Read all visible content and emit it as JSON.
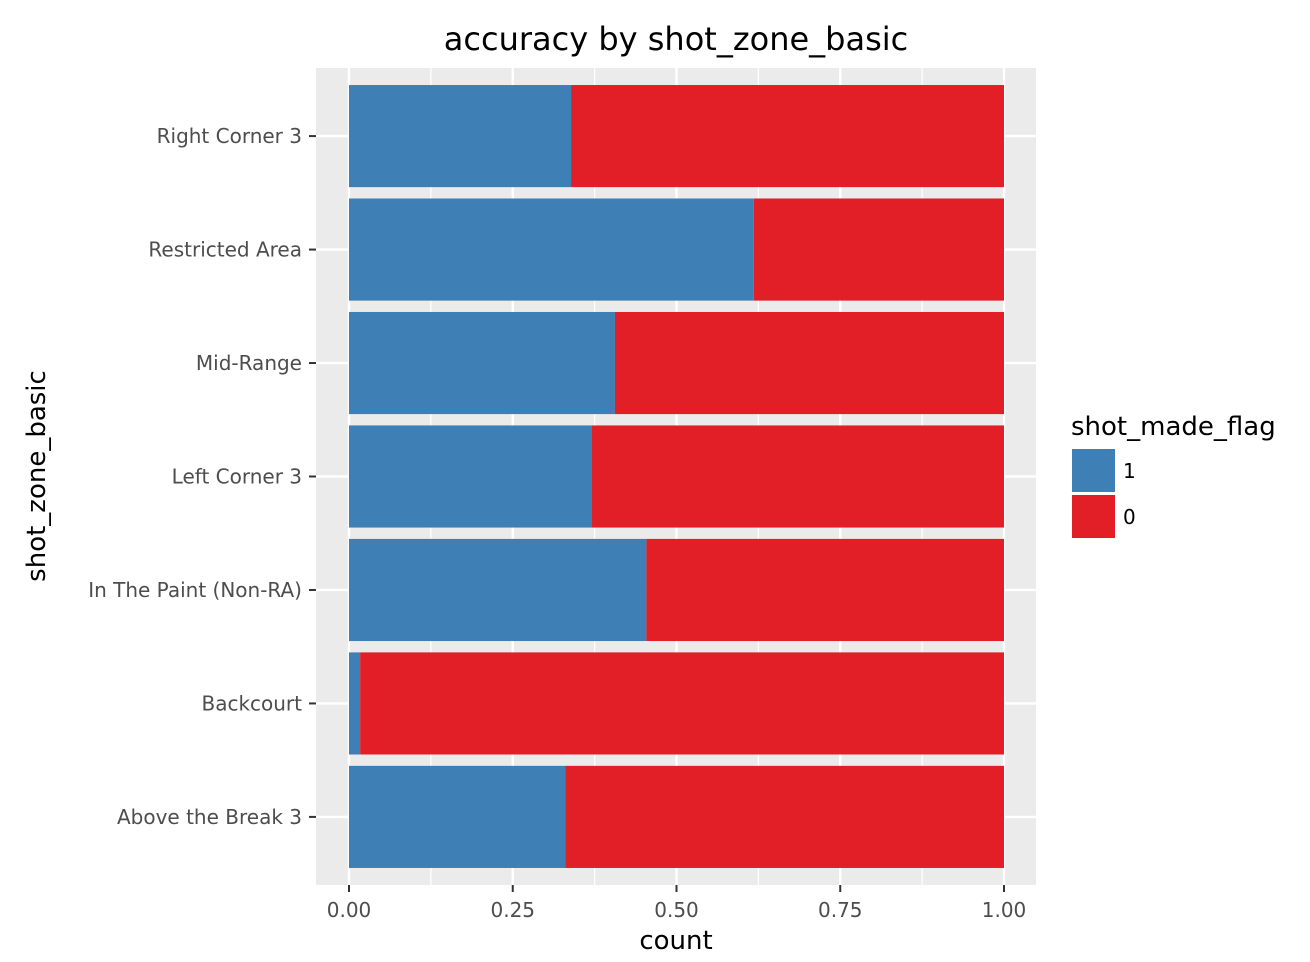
{
  "chart_data": {
    "type": "bar",
    "orientation": "horizontal",
    "stacked": true,
    "title": "accuracy by shot_zone_basic",
    "xlabel": "count",
    "ylabel": "shot_zone_basic",
    "xlim": [
      0,
      1
    ],
    "x_ticks": [
      "0.00",
      "0.25",
      "0.50",
      "0.75",
      "1.00"
    ],
    "categories": [
      "Above the Break 3",
      "Backcourt",
      "In The Paint (Non-RA)",
      "Left Corner 3",
      "Mid-Range",
      "Restricted Area",
      "Right Corner 3"
    ],
    "series": [
      {
        "name": "1",
        "color": "#3E7FB5",
        "values": [
          0.33,
          0.017,
          0.454,
          0.371,
          0.406,
          0.618,
          0.339
        ]
      },
      {
        "name": "0",
        "color": "#E21F27",
        "values": [
          0.67,
          0.983,
          0.546,
          0.629,
          0.594,
          0.382,
          0.661
        ]
      }
    ],
    "legend": {
      "title": "shot_made_flag",
      "position": "right",
      "entries": [
        "1",
        "0"
      ]
    },
    "grid": true,
    "panel_background": "#EBEBEB"
  }
}
